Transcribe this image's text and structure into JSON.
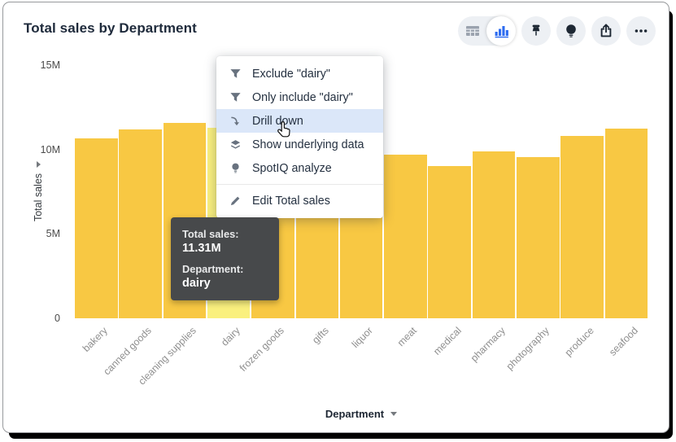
{
  "header": {
    "title": "Total sales by Department"
  },
  "toolbar": {
    "view_toggle": {
      "options": [
        {
          "icon": "table-view-icon",
          "name": "table-view-toggle",
          "selected": false
        },
        {
          "icon": "bar-chart-view-icon",
          "name": "chart-view-toggle",
          "selected": true
        }
      ]
    },
    "buttons": [
      {
        "icon": "pin-icon",
        "name": "pin-button"
      },
      {
        "icon": "lightbulb-icon",
        "name": "spotiq-button"
      },
      {
        "icon": "share-icon",
        "name": "share-button"
      },
      {
        "icon": "more-options-icon",
        "name": "more-options-button"
      }
    ]
  },
  "context_menu": {
    "items": [
      {
        "icon": "filter-icon",
        "label": "Exclude \"dairy\"",
        "highlighted": false,
        "separator_before": false
      },
      {
        "icon": "filter-icon",
        "label": "Only include \"dairy\"",
        "highlighted": false,
        "separator_before": false
      },
      {
        "icon": "drill-down-icon",
        "label": "Drill down",
        "highlighted": true,
        "separator_before": false
      },
      {
        "icon": "layers-icon",
        "label": "Show underlying data",
        "highlighted": false,
        "separator_before": false
      },
      {
        "icon": "bulb-icon",
        "label": "SpotIQ analyze",
        "highlighted": false,
        "separator_before": false
      },
      {
        "icon": "pencil-icon",
        "label": "Edit Total sales",
        "highlighted": false,
        "separator_before": true
      }
    ]
  },
  "tooltip": {
    "rows": [
      {
        "label": "Total sales:",
        "value": "11.31M"
      },
      {
        "label": "Department:",
        "value": "dairy"
      }
    ]
  },
  "chart_data": {
    "type": "bar",
    "title": "Total sales by Department",
    "xlabel": "Department",
    "ylabel": "Total sales",
    "categories": [
      "bakery",
      "canned goods",
      "cleaning supplies",
      "dairy",
      "frozen goods",
      "gifts",
      "liquor",
      "meat",
      "medical",
      "pharmacy",
      "photography",
      "produce",
      "seafood"
    ],
    "values_millions": [
      10.68,
      11.19,
      11.56,
      11.31,
      11.46,
      9.39,
      9.32,
      9.7,
      9.02,
      9.9,
      9.54,
      10.82,
      11.24
    ],
    "highlighted_category": "dairy",
    "highlighted_value_label": "11.31M",
    "ylim_millions": [
      0,
      15
    ],
    "yticks": [
      {
        "value": 15,
        "label": "15M"
      },
      {
        "value": 10,
        "label": "10M"
      },
      {
        "value": 5,
        "label": "5M"
      },
      {
        "value": 0,
        "label": "0"
      }
    ],
    "grid": false,
    "legend": false,
    "bar_color": "#F8C843",
    "highlight_color": "#FAF07E"
  },
  "colors": {
    "accent_blue": "#2E6CF0",
    "menu_highlight": "#DBE7F9",
    "tooltip_bg": "#47494B",
    "icon_dark": "#1D2733",
    "icon_gray": "#68727F",
    "bar_yellow": "#F8C843",
    "bar_highlight_yellow": "#FAF07E"
  }
}
